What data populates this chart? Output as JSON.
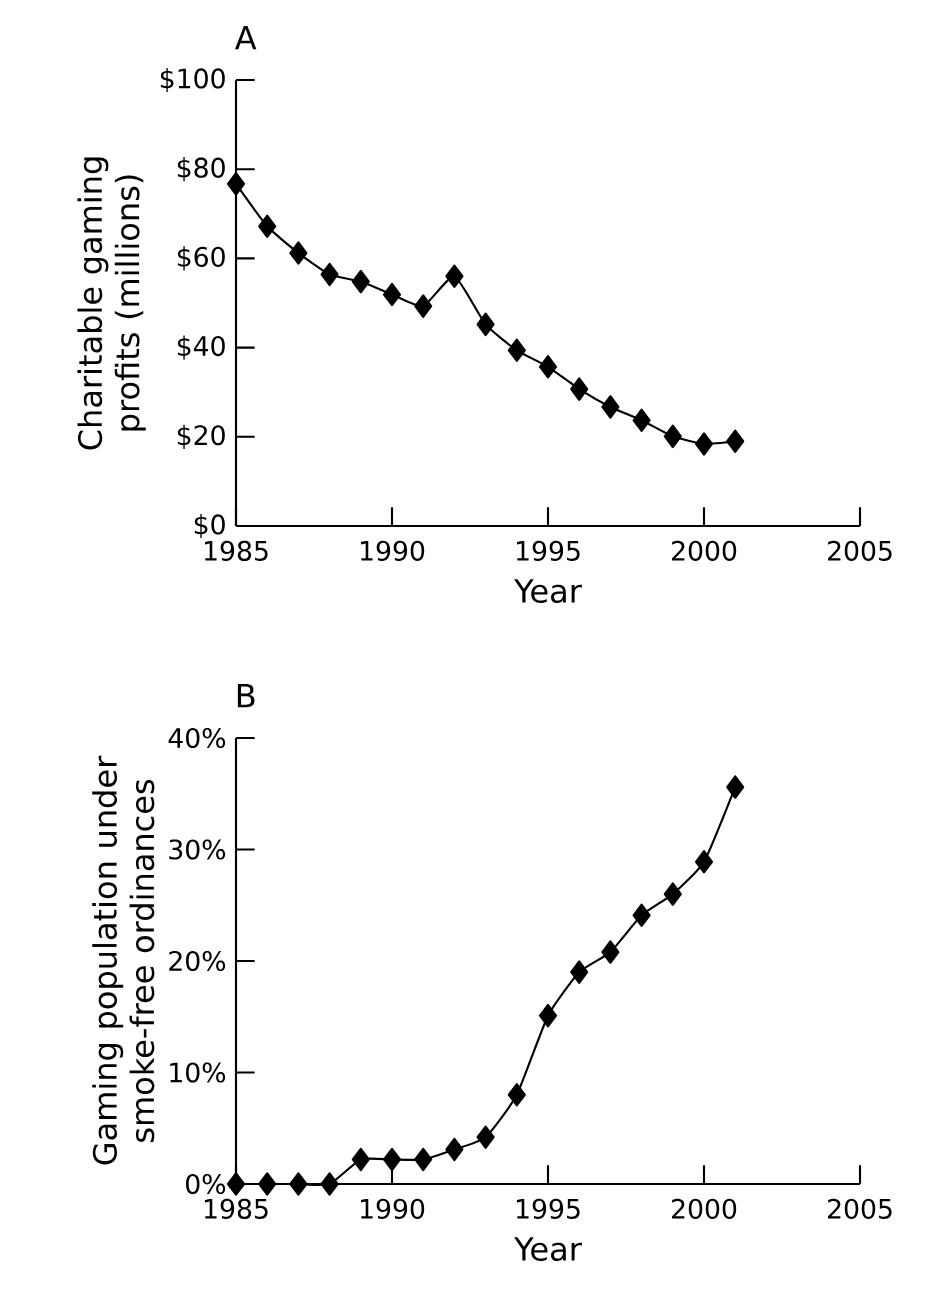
{
  "chart_data": [
    {
      "type": "line",
      "title": "A",
      "xlabel": "Year",
      "ylabel": "Charitable gaming profits (millions)",
      "x": [
        1985,
        1986,
        1987,
        1988,
        1989,
        1990,
        1991,
        1992,
        1993,
        1994,
        1995,
        1996,
        1997,
        1998,
        1999,
        2000,
        2001
      ],
      "series": [
        {
          "color": "#000000",
          "values": [
            76.7,
            67.2,
            61.2,
            56.4,
            54.8,
            51.9,
            49.3,
            56.0,
            45.2,
            39.4,
            35.7,
            30.7,
            26.7,
            23.7,
            20.1,
            18.4,
            19.0
          ]
        }
      ],
      "xlim": [
        1985,
        2005
      ],
      "xticks": [
        1985,
        1990,
        1995,
        2000,
        2005
      ],
      "ylim": [
        0,
        100
      ],
      "yticks": [
        {
          "value": 0,
          "label": "$0"
        },
        {
          "value": 20,
          "label": "$20"
        },
        {
          "value": 40,
          "label": "$40"
        },
        {
          "value": 60,
          "label": "$60"
        },
        {
          "value": 80,
          "label": "$80"
        },
        {
          "value": 100,
          "label": "$100"
        }
      ],
      "marker": "diamond",
      "line_style": "solid"
    },
    {
      "type": "line",
      "title": "B",
      "xlabel": "Year",
      "ylabel": "Gaming population under smoke-free ordinances",
      "x": [
        1985,
        1986,
        1987,
        1988,
        1989,
        1990,
        1991,
        1992,
        1993,
        1994,
        1995,
        1996,
        1997,
        1998,
        1999,
        2000,
        2001
      ],
      "series": [
        {
          "color": "#000000",
          "values": [
            0,
            0,
            0,
            0,
            2.2,
            2.2,
            2.2,
            3.1,
            4.2,
            8.0,
            15.1,
            19.0,
            20.8,
            24.1,
            26.0,
            28.9,
            35.6
          ]
        }
      ],
      "xlim": [
        1985,
        2005
      ],
      "xticks": [
        1985,
        1990,
        1995,
        2000,
        2005
      ],
      "ylim": [
        0,
        40
      ],
      "yticks": [
        {
          "value": 0,
          "label": "0%"
        },
        {
          "value": 10,
          "label": "10%"
        },
        {
          "value": 20,
          "label": "20%"
        },
        {
          "value": 30,
          "label": "30%"
        },
        {
          "value": 40,
          "label": "40%"
        }
      ],
      "marker": "diamond",
      "line_style": "solid"
    }
  ]
}
